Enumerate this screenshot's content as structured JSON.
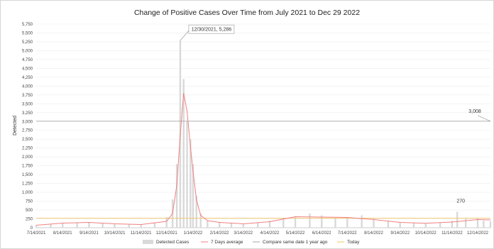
{
  "chart_data": {
    "type": "bar",
    "title": "Change of Positive Cases Over Time from July 2021 to Dec 29 2022",
    "xlabel": "",
    "ylabel": "Detected",
    "ylim": [
      0,
      5750
    ],
    "y_ticks": [
      "0",
      "250",
      "500",
      "750",
      "1,000",
      "1,250",
      "1,500",
      "1,750",
      "2,000",
      "2,250",
      "2,500",
      "2,750",
      "3,000",
      "3,250",
      "3,500",
      "3,750",
      "4,000",
      "4,250",
      "4,500",
      "4,750",
      "5,000",
      "5,250",
      "5,500",
      "5,750"
    ],
    "x_ticks": [
      "7/14/2021",
      "8/14/2021",
      "9/14/2021",
      "10/14/2021",
      "11/14/2021",
      "12/14/2021",
      "1/14/2022",
      "2/14/2022",
      "3/14/2022",
      "4/14/2022",
      "5/14/2022",
      "6/14/2022",
      "7/14/2022",
      "8/14/2022",
      "9/14/2022",
      "10/14/2022",
      "11/14/2022",
      "12/14/2022"
    ],
    "x_range": [
      "7/14/2021",
      "12/29/2022"
    ],
    "grid": true,
    "legend_position": "bottom",
    "series": [
      {
        "name": "Detected Cases",
        "kind": "bar",
        "color": "#d9d9d9",
        "x": [
          "7/14/2021",
          "7/31/2021",
          "8/14/2021",
          "8/31/2021",
          "9/14/2021",
          "9/30/2021",
          "10/14/2021",
          "10/31/2021",
          "11/14/2021",
          "11/30/2021",
          "12/14/2021",
          "12/21/2021",
          "12/26/2021",
          "12/30/2021",
          "1/3/2022",
          "1/7/2022",
          "1/11/2022",
          "1/14/2022",
          "1/18/2022",
          "1/23/2022",
          "1/31/2022",
          "2/14/2022",
          "2/28/2022",
          "3/14/2022",
          "3/31/2022",
          "4/14/2022",
          "4/30/2022",
          "5/14/2022",
          "5/31/2022",
          "6/14/2022",
          "6/30/2022",
          "7/14/2022",
          "7/31/2022",
          "8/14/2022",
          "8/31/2022",
          "9/14/2022",
          "9/30/2022",
          "10/14/2022",
          "10/31/2022",
          "11/14/2022",
          "11/20/2022",
          "11/30/2022",
          "12/14/2022",
          "12/21/2022",
          "12/29/2022"
        ],
        "values": [
          80,
          110,
          130,
          140,
          150,
          120,
          100,
          90,
          100,
          150,
          300,
          800,
          1800,
          5286,
          4200,
          3000,
          2500,
          1800,
          900,
          400,
          200,
          150,
          120,
          100,
          150,
          200,
          280,
          300,
          400,
          350,
          280,
          300,
          350,
          250,
          200,
          150,
          130,
          120,
          140,
          200,
          450,
          270,
          280,
          200,
          180
        ]
      },
      {
        "name": "7 Days average",
        "kind": "line",
        "color": "#f08080",
        "x": [
          "7/14/2021",
          "8/14/2021",
          "9/14/2021",
          "10/14/2021",
          "11/14/2021",
          "12/14/2021",
          "12/21/2021",
          "12/26/2021",
          "12/30/2021",
          "1/3/2022",
          "1/7/2022",
          "1/11/2022",
          "1/14/2022",
          "1/18/2022",
          "1/23/2022",
          "1/31/2022",
          "2/14/2022",
          "3/14/2022",
          "4/14/2022",
          "5/14/2022",
          "6/14/2022",
          "7/14/2022",
          "8/14/2022",
          "9/14/2022",
          "10/14/2022",
          "11/14/2022",
          "12/14/2022",
          "12/29/2022"
        ],
        "values": [
          70,
          130,
          150,
          110,
          90,
          180,
          400,
          1200,
          2600,
          3800,
          3300,
          2300,
          1600,
          800,
          350,
          200,
          150,
          110,
          170,
          310,
          300,
          290,
          230,
          150,
          125,
          160,
          230,
          220
        ]
      },
      {
        "name": "Compare same date 1 year ago",
        "kind": "line",
        "color": "#a6a6a6",
        "x": [
          "7/14/2021",
          "12/29/2022"
        ],
        "values": [
          3008,
          3008
        ]
      },
      {
        "name": "Today",
        "kind": "line",
        "color": "#f5c66b",
        "x": [
          "7/14/2021",
          "12/29/2022"
        ],
        "values": [
          270,
          270
        ]
      }
    ],
    "annotations": [
      {
        "text": "12/30/2021, 5,286",
        "x": "12/30/2021",
        "y": 5286
      },
      {
        "text": "3,008",
        "x": "12/29/2022",
        "y": 3008
      },
      {
        "text": "270",
        "x": "11/20/2022",
        "y": 270
      }
    ]
  }
}
